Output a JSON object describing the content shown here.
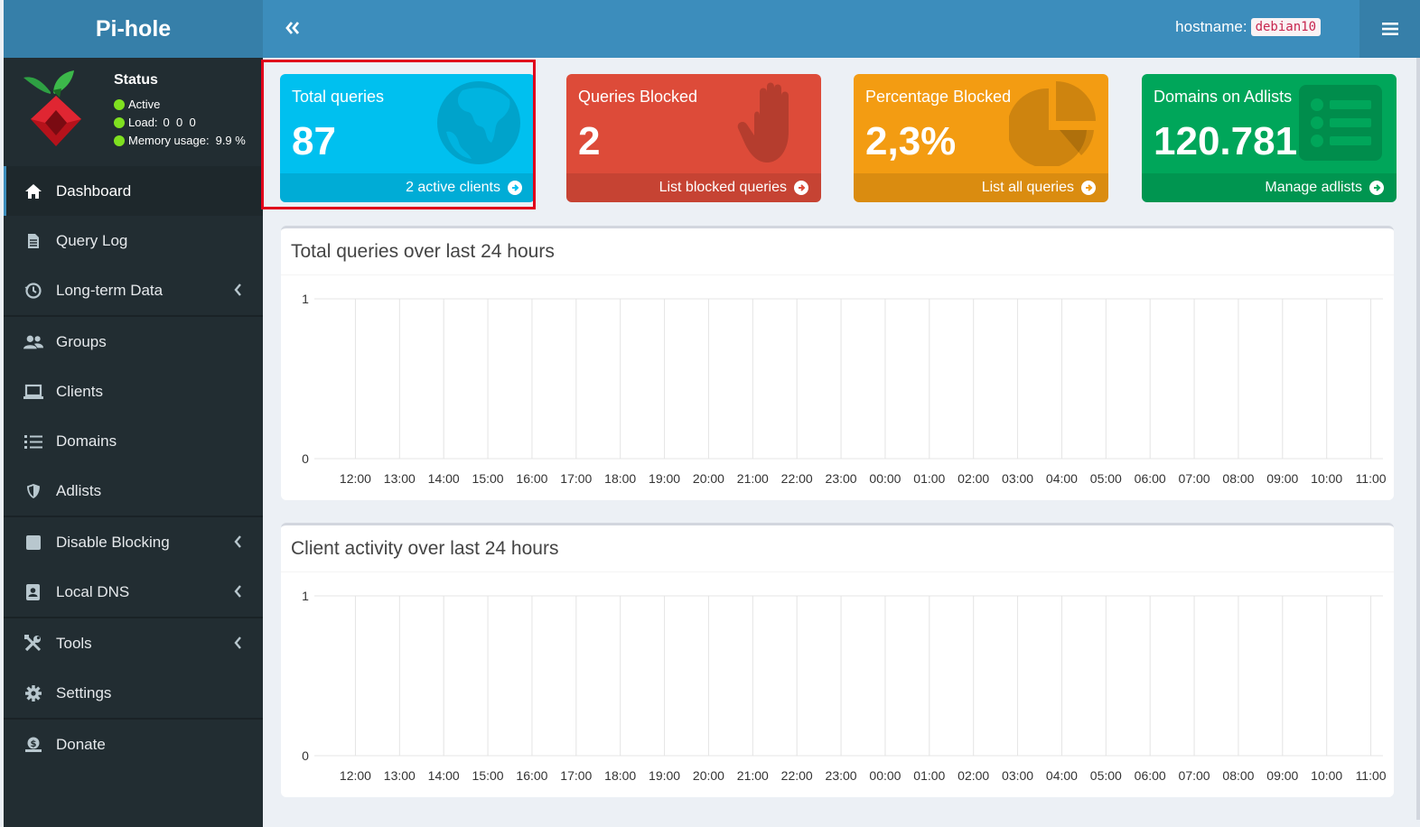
{
  "app": {
    "name": "Pi-hole"
  },
  "status": {
    "title": "Status",
    "active": "Active",
    "load_label": "Load:",
    "load_values": "0  0  0",
    "memory_label": "Memory usage:",
    "memory_value": "9.9 %"
  },
  "header": {
    "hostname_label": "hostname:",
    "hostname_value": "debian10"
  },
  "nav": [
    {
      "label": "Dashboard",
      "icon": "home-icon",
      "active": true
    },
    {
      "label": "Query Log",
      "icon": "file-icon"
    },
    {
      "label": "Long-term Data",
      "icon": "history-icon",
      "submenu": true
    },
    {
      "label": "Groups",
      "icon": "users-icon"
    },
    {
      "label": "Clients",
      "icon": "laptop-icon"
    },
    {
      "label": "Domains",
      "icon": "list-icon"
    },
    {
      "label": "Adlists",
      "icon": "shield-icon"
    },
    {
      "label": "Disable Blocking",
      "icon": "stop-icon",
      "submenu": true
    },
    {
      "label": "Local DNS",
      "icon": "address-book-icon",
      "submenu": true
    },
    {
      "label": "Tools",
      "icon": "tools-icon",
      "submenu": true
    },
    {
      "label": "Settings",
      "icon": "gear-icon"
    },
    {
      "label": "Donate",
      "icon": "donate-icon"
    }
  ],
  "stats": [
    {
      "label": "Total queries",
      "value": "87",
      "footer": "2 active clients",
      "color": "#00c0ef",
      "icon": "globe-icon"
    },
    {
      "label": "Queries Blocked",
      "value": "2",
      "footer": "List blocked queries",
      "color": "#dd4b39",
      "icon": "hand-icon"
    },
    {
      "label": "Percentage Blocked",
      "value": "2,3%",
      "footer": "List all queries",
      "color": "#f39c12",
      "icon": "pie-chart-icon"
    },
    {
      "label": "Domains on Adlists",
      "value": "120.781",
      "footer": "Manage adlists",
      "color": "#00a65a",
      "icon": "list-alt-icon"
    }
  ],
  "chart_data": [
    {
      "type": "line",
      "title": "Total queries over last 24 hours",
      "x": [
        "12:00",
        "13:00",
        "14:00",
        "15:00",
        "16:00",
        "17:00",
        "18:00",
        "19:00",
        "20:00",
        "21:00",
        "22:00",
        "23:00",
        "00:00",
        "01:00",
        "02:00",
        "03:00",
        "04:00",
        "05:00",
        "06:00",
        "07:00",
        "08:00",
        "09:00",
        "10:00",
        "11:00"
      ],
      "yticks": [
        "1",
        "0"
      ],
      "ylim": [
        0,
        1
      ],
      "grid": true,
      "series": []
    },
    {
      "type": "line",
      "title": "Client activity over last 24 hours",
      "x": [
        "12:00",
        "13:00",
        "14:00",
        "15:00",
        "16:00",
        "17:00",
        "18:00",
        "19:00",
        "20:00",
        "21:00",
        "22:00",
        "23:00",
        "00:00",
        "01:00",
        "02:00",
        "03:00",
        "04:00",
        "05:00",
        "06:00",
        "07:00",
        "08:00",
        "09:00",
        "10:00",
        "11:00"
      ],
      "yticks": [
        "1",
        "0"
      ],
      "ylim": [
        0,
        1
      ],
      "grid": true,
      "series": []
    }
  ]
}
